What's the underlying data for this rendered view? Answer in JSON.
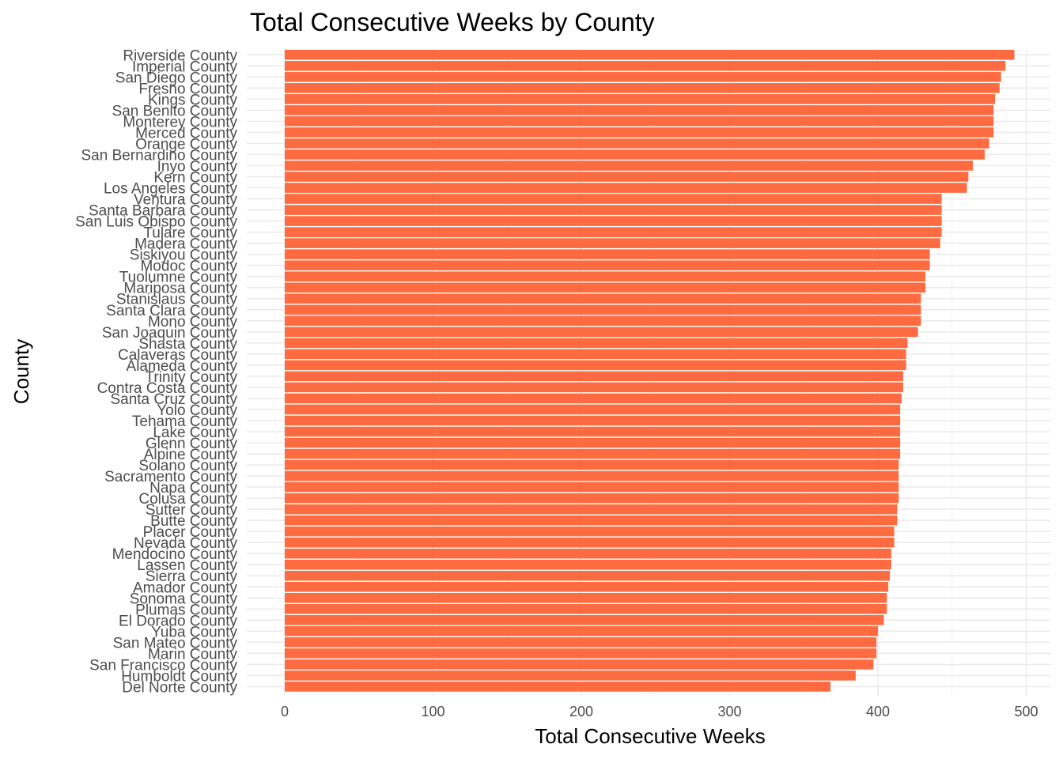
{
  "chart_data": {
    "type": "bar",
    "orientation": "horizontal",
    "title": "Total Consecutive Weeks by County",
    "xlabel": "Total Consecutive Weeks",
    "ylabel": "County",
    "xlim": [
      0,
      500
    ],
    "xticks": [
      0,
      100,
      200,
      300,
      400,
      500
    ],
    "grid": true,
    "bar_color": "#ff6b40",
    "categories": [
      "Riverside County",
      "Imperial County",
      "San Diego County",
      "Fresno County",
      "Kings County",
      "San Benito County",
      "Monterey County",
      "Merced County",
      "Orange County",
      "San Bernardino County",
      "Inyo County",
      "Kern County",
      "Los Angeles County",
      "Ventura County",
      "Santa Barbara County",
      "San Luis Obispo County",
      "Tulare County",
      "Madera County",
      "Siskiyou County",
      "Modoc County",
      "Tuolumne County",
      "Mariposa County",
      "Stanislaus County",
      "Santa Clara County",
      "Mono County",
      "San Joaquin County",
      "Shasta County",
      "Calaveras County",
      "Alameda County",
      "Trinity County",
      "Contra Costa County",
      "Santa Cruz County",
      "Yolo County",
      "Tehama County",
      "Lake County",
      "Glenn County",
      "Alpine County",
      "Solano County",
      "Sacramento County",
      "Napa County",
      "Colusa County",
      "Sutter County",
      "Butte County",
      "Placer County",
      "Nevada County",
      "Mendocino County",
      "Lassen County",
      "Sierra County",
      "Amador County",
      "Sonoma County",
      "Plumas County",
      "El Dorado County",
      "Yuba County",
      "San Mateo County",
      "Marin County",
      "San Francisco County",
      "Humboldt County",
      "Del Norte County"
    ],
    "values": [
      492,
      486,
      483,
      482,
      479,
      478,
      478,
      478,
      475,
      472,
      464,
      461,
      460,
      443,
      443,
      443,
      443,
      442,
      435,
      435,
      432,
      432,
      429,
      429,
      429,
      427,
      420,
      419,
      419,
      417,
      417,
      416,
      415,
      415,
      415,
      415,
      415,
      414,
      414,
      414,
      414,
      413,
      413,
      411,
      411,
      409,
      409,
      408,
      407,
      406,
      406,
      404,
      400,
      399,
      399,
      397,
      385,
      368
    ]
  }
}
